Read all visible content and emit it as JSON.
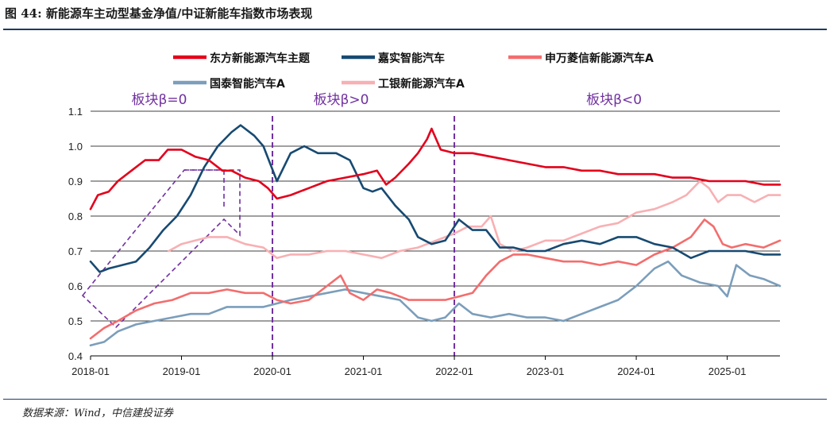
{
  "figure": {
    "title": "图 44:  新能源车主动型基金净值/中证新能车指数市场表现",
    "source": "数据来源：Wind，中信建投证券"
  },
  "chart_data": {
    "type": "line",
    "title": "",
    "xlabel": "",
    "ylabel": "",
    "ylim": [
      0.4,
      1.1
    ],
    "xlim": [
      2018.0,
      2025.58
    ],
    "yticks": [
      0.4,
      0.5,
      0.6,
      0.7,
      0.8,
      0.9,
      1.0,
      1.1
    ],
    "ytick_labels": [
      "0.4",
      "0.5",
      "0.6",
      "0.7",
      "0.8",
      "0.9",
      "1.0",
      "1.1"
    ],
    "xticks": [
      2018,
      2019,
      2020,
      2021,
      2022,
      2023,
      2024,
      2025
    ],
    "xtick_labels": [
      "2018-01",
      "2019-01",
      "2020-01",
      "2021-01",
      "2022-01",
      "2023-01",
      "2024-01",
      "2025-01"
    ],
    "grid": "horizontal",
    "legend_position": "top",
    "dividers": [
      2020.0,
      2022.0
    ],
    "regions": [
      {
        "label": "板块β=0",
        "x": 2019.0
      },
      {
        "label": "板块β>0",
        "x": 2021.0
      },
      {
        "label": "板块β<0",
        "x": 2024.0
      }
    ],
    "series": [
      {
        "name": "东方新能源汽车主题",
        "color": "#e3001b",
        "x": [
          2018.0,
          2018.08,
          2018.2,
          2018.3,
          2018.45,
          2018.6,
          2018.75,
          2018.85,
          2019.0,
          2019.15,
          2019.3,
          2019.45,
          2019.55,
          2019.7,
          2019.85,
          2019.95,
          2020.05,
          2020.2,
          2020.4,
          2020.6,
          2020.8,
          2021.0,
          2021.15,
          2021.25,
          2021.35,
          2021.5,
          2021.6,
          2021.7,
          2021.75,
          2021.85,
          2022.0,
          2022.2,
          2022.4,
          2022.6,
          2022.8,
          2023.0,
          2023.2,
          2023.4,
          2023.6,
          2023.8,
          2024.0,
          2024.2,
          2024.4,
          2024.6,
          2024.8,
          2025.0,
          2025.2,
          2025.4,
          2025.58
        ],
        "values": [
          0.82,
          0.86,
          0.87,
          0.9,
          0.93,
          0.96,
          0.96,
          0.99,
          0.99,
          0.97,
          0.96,
          0.93,
          0.93,
          0.91,
          0.9,
          0.88,
          0.85,
          0.86,
          0.88,
          0.9,
          0.91,
          0.92,
          0.93,
          0.89,
          0.91,
          0.95,
          0.98,
          1.02,
          1.05,
          0.99,
          0.98,
          0.98,
          0.97,
          0.96,
          0.95,
          0.94,
          0.94,
          0.93,
          0.93,
          0.92,
          0.92,
          0.92,
          0.91,
          0.91,
          0.9,
          0.9,
          0.9,
          0.89,
          0.89
        ]
      },
      {
        "name": "嘉实智能汽车",
        "color": "#174a72",
        "x": [
          2018.0,
          2018.1,
          2018.2,
          2018.35,
          2018.5,
          2018.65,
          2018.8,
          2018.95,
          2019.1,
          2019.25,
          2019.4,
          2019.55,
          2019.65,
          2019.8,
          2019.9,
          2020.05,
          2020.2,
          2020.35,
          2020.5,
          2020.7,
          2020.85,
          2021.0,
          2021.1,
          2021.2,
          2021.35,
          2021.5,
          2021.6,
          2021.75,
          2021.9,
          2022.05,
          2022.2,
          2022.35,
          2022.5,
          2022.65,
          2022.8,
          2023.0,
          2023.2,
          2023.4,
          2023.6,
          2023.8,
          2024.0,
          2024.2,
          2024.4,
          2024.6,
          2024.8,
          2025.0,
          2025.2,
          2025.4,
          2025.58
        ],
        "values": [
          0.67,
          0.64,
          0.65,
          0.66,
          0.67,
          0.71,
          0.76,
          0.8,
          0.86,
          0.94,
          1.0,
          1.04,
          1.06,
          1.03,
          1.0,
          0.9,
          0.98,
          1.0,
          0.98,
          0.98,
          0.96,
          0.88,
          0.87,
          0.88,
          0.83,
          0.79,
          0.74,
          0.72,
          0.73,
          0.79,
          0.76,
          0.76,
          0.71,
          0.71,
          0.7,
          0.7,
          0.72,
          0.73,
          0.72,
          0.74,
          0.74,
          0.72,
          0.71,
          0.68,
          0.7,
          0.7,
          0.7,
          0.69,
          0.69
        ]
      },
      {
        "name": "申万菱信新能源汽车A",
        "color": "#f36d6d",
        "x": [
          2018.0,
          2018.15,
          2018.3,
          2018.5,
          2018.7,
          2018.9,
          2019.1,
          2019.3,
          2019.5,
          2019.7,
          2019.9,
          2020.05,
          2020.2,
          2020.4,
          2020.6,
          2020.75,
          2020.85,
          2021.0,
          2021.15,
          2021.3,
          2021.5,
          2021.7,
          2021.9,
          2022.05,
          2022.2,
          2022.35,
          2022.5,
          2022.65,
          2022.8,
          2023.0,
          2023.2,
          2023.4,
          2023.6,
          2023.8,
          2024.0,
          2024.2,
          2024.4,
          2024.6,
          2024.75,
          2024.85,
          2024.95,
          2025.05,
          2025.2,
          2025.4,
          2025.58
        ],
        "values": [
          0.45,
          0.48,
          0.5,
          0.53,
          0.55,
          0.56,
          0.58,
          0.58,
          0.59,
          0.58,
          0.58,
          0.56,
          0.55,
          0.56,
          0.6,
          0.63,
          0.58,
          0.56,
          0.59,
          0.58,
          0.56,
          0.56,
          0.56,
          0.57,
          0.58,
          0.63,
          0.67,
          0.69,
          0.69,
          0.68,
          0.67,
          0.67,
          0.66,
          0.67,
          0.66,
          0.69,
          0.71,
          0.74,
          0.79,
          0.77,
          0.72,
          0.71,
          0.72,
          0.71,
          0.73
        ]
      },
      {
        "name": "国泰智能汽车A",
        "color": "#7b9ebb",
        "x": [
          2018.0,
          2018.15,
          2018.3,
          2018.5,
          2018.7,
          2018.9,
          2019.1,
          2019.3,
          2019.5,
          2019.7,
          2019.9,
          2020.05,
          2020.2,
          2020.4,
          2020.6,
          2020.8,
          2021.0,
          2021.2,
          2021.4,
          2021.6,
          2021.75,
          2021.9,
          2022.05,
          2022.2,
          2022.4,
          2022.6,
          2022.8,
          2023.0,
          2023.2,
          2023.4,
          2023.6,
          2023.8,
          2024.0,
          2024.2,
          2024.35,
          2024.5,
          2024.7,
          2024.9,
          2025.0,
          2025.1,
          2025.25,
          2025.4,
          2025.58
        ],
        "values": [
          0.43,
          0.44,
          0.47,
          0.49,
          0.5,
          0.51,
          0.52,
          0.52,
          0.54,
          0.54,
          0.54,
          0.55,
          0.56,
          0.57,
          0.58,
          0.59,
          0.58,
          0.57,
          0.56,
          0.51,
          0.5,
          0.51,
          0.55,
          0.52,
          0.51,
          0.52,
          0.51,
          0.51,
          0.5,
          0.52,
          0.54,
          0.56,
          0.6,
          0.65,
          0.67,
          0.63,
          0.61,
          0.6,
          0.57,
          0.66,
          0.63,
          0.62,
          0.6
        ]
      },
      {
        "name": "工银新能源汽车A",
        "color": "#f8b0b3",
        "x": [
          2018.86,
          2019.0,
          2019.15,
          2019.3,
          2019.5,
          2019.7,
          2019.9,
          2020.05,
          2020.2,
          2020.4,
          2020.6,
          2020.8,
          2021.0,
          2021.2,
          2021.4,
          2021.6,
          2021.8,
          2022.0,
          2022.15,
          2022.3,
          2022.4,
          2022.5,
          2022.65,
          2022.8,
          2023.0,
          2023.2,
          2023.4,
          2023.6,
          2023.8,
          2024.0,
          2024.2,
          2024.4,
          2024.55,
          2024.7,
          2024.8,
          2024.9,
          2025.0,
          2025.15,
          2025.3,
          2025.45,
          2025.58
        ],
        "values": [
          0.7,
          0.72,
          0.73,
          0.74,
          0.74,
          0.72,
          0.71,
          0.68,
          0.69,
          0.69,
          0.7,
          0.7,
          0.69,
          0.68,
          0.7,
          0.71,
          0.73,
          0.75,
          0.77,
          0.77,
          0.8,
          0.72,
          0.7,
          0.71,
          0.73,
          0.73,
          0.75,
          0.77,
          0.78,
          0.81,
          0.82,
          0.84,
          0.86,
          0.9,
          0.88,
          0.84,
          0.86,
          0.86,
          0.84,
          0.86,
          0.86
        ]
      }
    ]
  }
}
